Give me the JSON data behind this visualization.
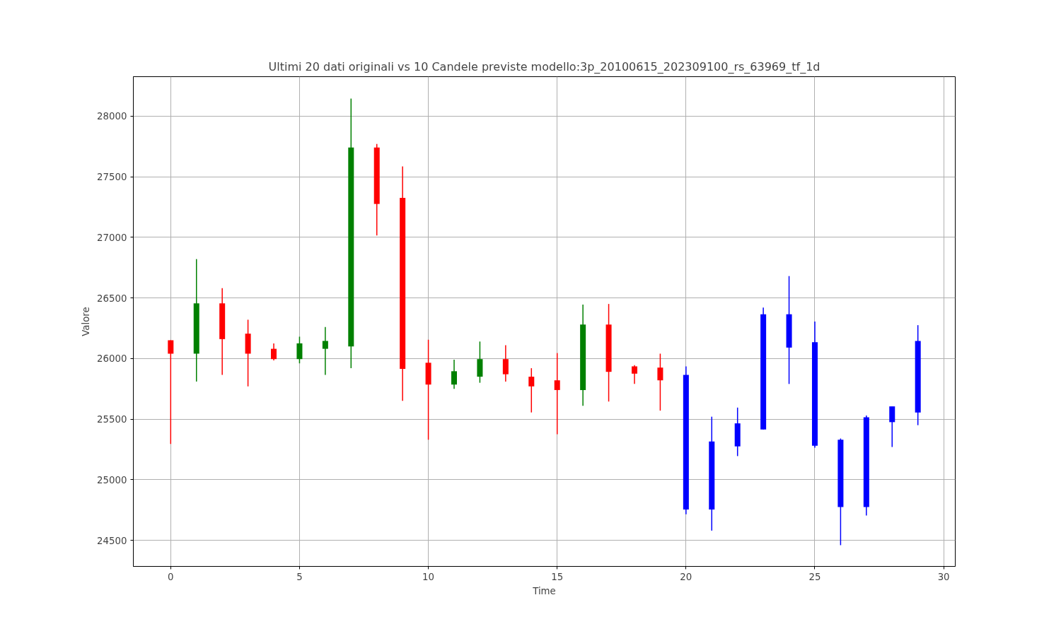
{
  "chart_data": {
    "type": "candlestick",
    "title": "Ultimi 20 dati originali vs 10 Candele previste modello:3p_20100615_202309100_rs_63969_tf_1d",
    "xlabel": "Time",
    "ylabel": "Valore",
    "x": [
      0,
      1,
      2,
      3,
      4,
      5,
      6,
      7,
      8,
      9,
      10,
      11,
      12,
      13,
      14,
      15,
      16,
      17,
      18,
      19,
      20,
      21,
      22,
      23,
      24,
      25,
      26,
      27,
      28,
      29
    ],
    "ohlc": [
      [
        26150,
        26150,
        25295,
        26040
      ],
      [
        26040,
        26820,
        25810,
        26455
      ],
      [
        26455,
        26580,
        25865,
        26160
      ],
      [
        26205,
        26320,
        25770,
        26040
      ],
      [
        26080,
        26125,
        25985,
        25995
      ],
      [
        25995,
        26180,
        25960,
        26125
      ],
      [
        26080,
        26260,
        25865,
        26145
      ],
      [
        26100,
        28145,
        25920,
        27740
      ],
      [
        27740,
        27770,
        27015,
        27275
      ],
      [
        27325,
        27585,
        25650,
        25915
      ],
      [
        25965,
        26155,
        25330,
        25785
      ],
      [
        25785,
        25990,
        25750,
        25895
      ],
      [
        25850,
        26140,
        25800,
        25995
      ],
      [
        25995,
        26110,
        25810,
        25870
      ],
      [
        25850,
        25920,
        25555,
        25770
      ],
      [
        25820,
        26045,
        25375,
        25740
      ],
      [
        25740,
        26445,
        25610,
        26280
      ],
      [
        26280,
        26450,
        25645,
        25890
      ],
      [
        25935,
        25945,
        25790,
        25875
      ],
      [
        25925,
        26040,
        25570,
        25820
      ],
      [
        25865,
        25935,
        24715,
        24755
      ],
      [
        24755,
        25520,
        24580,
        25315
      ],
      [
        25275,
        25595,
        25195,
        25465
      ],
      [
        25415,
        26420,
        25415,
        26365
      ],
      [
        26365,
        26680,
        25790,
        26090
      ],
      [
        26135,
        26305,
        25265,
        25280
      ],
      [
        25330,
        25340,
        24460,
        24775
      ],
      [
        24775,
        25530,
        24705,
        25515
      ],
      [
        25475,
        25605,
        25270,
        25605
      ],
      [
        25555,
        26275,
        25450,
        26145
      ]
    ],
    "colors": [
      "#ff0000",
      "#008000",
      "#ff0000",
      "#ff0000",
      "#ff0000",
      "#008000",
      "#008000",
      "#008000",
      "#ff0000",
      "#ff0000",
      "#ff0000",
      "#008000",
      "#008000",
      "#ff0000",
      "#ff0000",
      "#ff0000",
      "#008000",
      "#ff0000",
      "#ff0000",
      "#ff0000",
      "#0000ff",
      "#0000ff",
      "#0000ff",
      "#0000ff",
      "#0000ff",
      "#0000ff",
      "#0000ff",
      "#0000ff",
      "#0000ff",
      "#0000ff"
    ],
    "xlim": [
      -1.45,
      30.45
    ],
    "ylim": [
      24285,
      28325
    ],
    "xticks": [
      0,
      5,
      10,
      15,
      20,
      25,
      30
    ],
    "yticks": [
      24500,
      25000,
      25500,
      26000,
      26500,
      27000,
      27500,
      28000
    ],
    "grid": true
  }
}
